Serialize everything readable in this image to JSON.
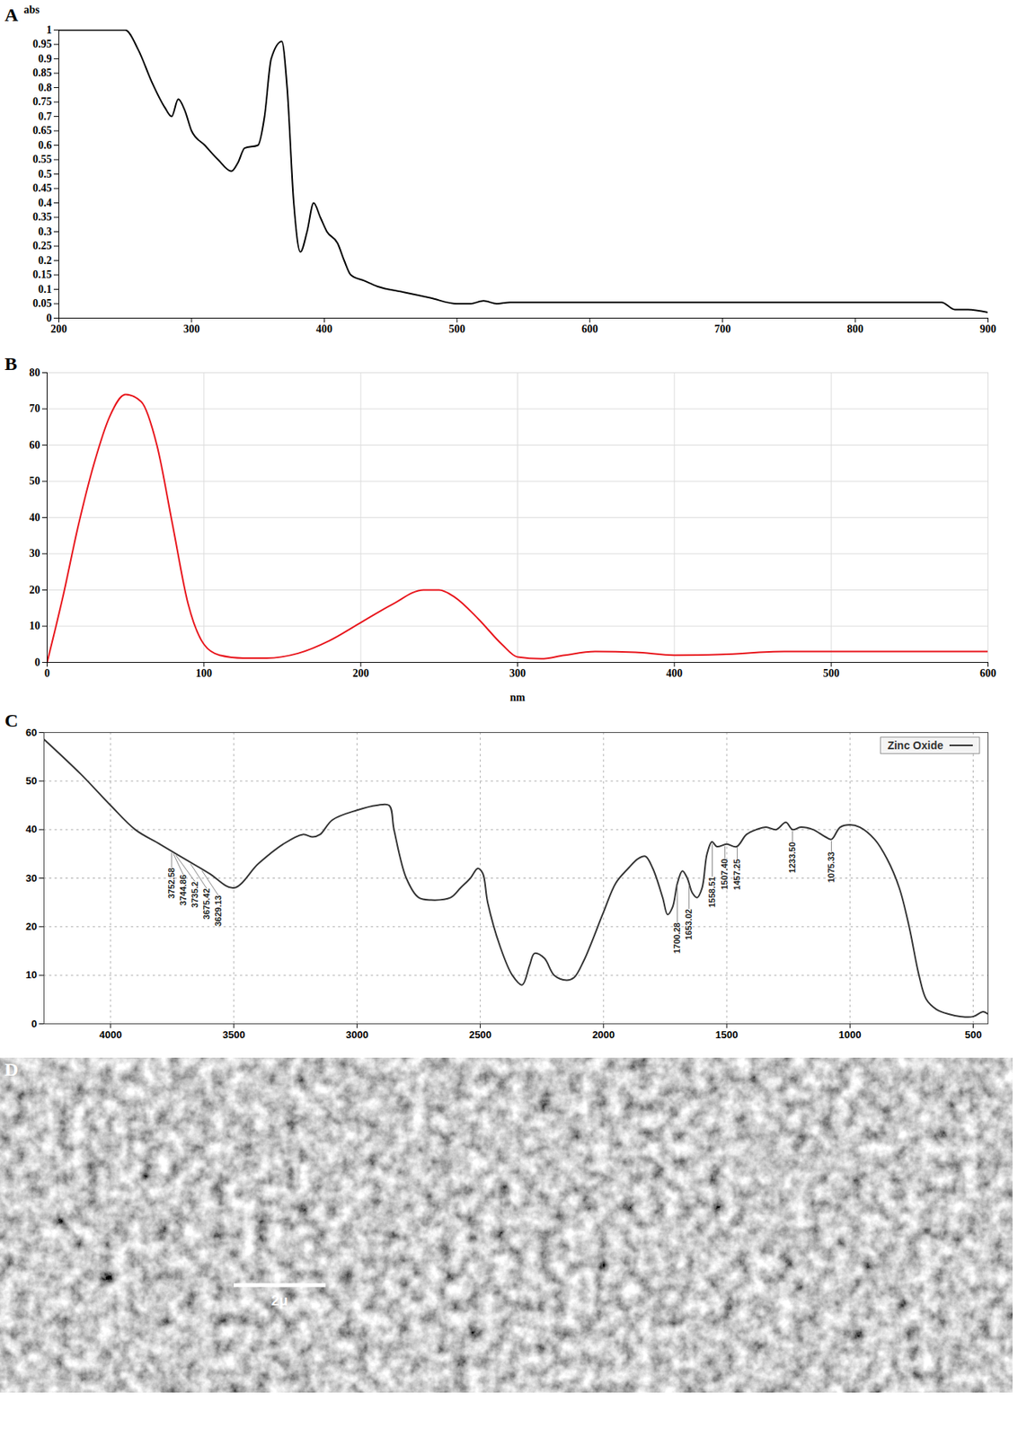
{
  "chart_data": [
    {
      "panel": "A",
      "type": "line",
      "y_label": "abs",
      "color": "#000000",
      "grid": false,
      "x": [
        200,
        250,
        260,
        270,
        280,
        285,
        290,
        295,
        300,
        310,
        320,
        330,
        335,
        340,
        350,
        355,
        360,
        368,
        372,
        377,
        382,
        387,
        392,
        397,
        402,
        410,
        415,
        420,
        430,
        440,
        460,
        480,
        500,
        510,
        520,
        530,
        540,
        600,
        700,
        800,
        865,
        875,
        885,
        900
      ],
      "values": [
        1,
        1,
        0.93,
        0.82,
        0.73,
        0.7,
        0.76,
        0.72,
        0.65,
        0.6,
        0.55,
        0.51,
        0.54,
        0.59,
        0.6,
        0.7,
        0.9,
        0.96,
        0.8,
        0.4,
        0.23,
        0.3,
        0.4,
        0.35,
        0.3,
        0.26,
        0.2,
        0.15,
        0.13,
        0.11,
        0.09,
        0.07,
        0.05,
        0.05,
        0.06,
        0.05,
        0.055,
        0.055,
        0.055,
        0.055,
        0.055,
        0.03,
        0.03,
        0.02
      ],
      "xlim": [
        200,
        900
      ],
      "xticks": [
        200,
        300,
        400,
        500,
        600,
        700,
        800,
        900
      ],
      "ylim": [
        0,
        1
      ],
      "yticks": [
        0,
        0.05,
        0.1,
        0.15,
        0.2,
        0.25,
        0.3,
        0.35,
        0.4,
        0.45,
        0.5,
        0.55,
        0.6,
        0.65,
        0.7,
        0.75,
        0.8,
        0.85,
        0.9,
        0.95,
        1
      ]
    },
    {
      "panel": "B",
      "type": "line",
      "x_label": "nm",
      "color": "#e8141b",
      "grid": true,
      "x": [
        0,
        10,
        20,
        30,
        40,
        50,
        60,
        70,
        80,
        90,
        100,
        110,
        125,
        140,
        160,
        180,
        200,
        220,
        240,
        250,
        260,
        275,
        290,
        300,
        315,
        330,
        350,
        375,
        400,
        430,
        470,
        500,
        550,
        600
      ],
      "values": [
        0,
        18,
        38,
        55,
        68,
        74,
        72,
        60,
        38,
        16,
        5,
        2,
        1.2,
        1.2,
        2.5,
        6,
        11,
        16,
        20,
        20,
        18,
        12,
        5,
        1.5,
        1,
        2,
        3,
        2.8,
        2,
        2.2,
        3,
        3,
        3,
        3
      ],
      "xlim": [
        0,
        600
      ],
      "xticks": [
        0,
        100,
        200,
        300,
        400,
        500,
        600
      ],
      "ylim": [
        0,
        80
      ],
      "yticks": [
        0,
        10,
        20,
        30,
        40,
        50,
        60,
        70,
        80
      ]
    },
    {
      "panel": "C",
      "type": "line",
      "grid": true,
      "legend": "top-right",
      "x": [
        4270,
        4120,
        4000,
        3900,
        3800,
        3700,
        3600,
        3500,
        3400,
        3300,
        3220,
        3180,
        3150,
        3100,
        3000,
        2920,
        2870,
        2850,
        2800,
        2750,
        2700,
        2620,
        2580,
        2540,
        2510,
        2490,
        2470,
        2420,
        2370,
        2330,
        2300,
        2280,
        2240,
        2200,
        2150,
        2120,
        2080,
        2000,
        1950,
        1900,
        1860,
        1830,
        1800,
        1760,
        1740,
        1720,
        1700,
        1680,
        1660,
        1640,
        1620,
        1600,
        1580,
        1560,
        1540,
        1500,
        1460,
        1420,
        1380,
        1340,
        1300,
        1260,
        1233,
        1200,
        1150,
        1100,
        1075,
        1040,
        1000,
        960,
        900,
        850,
        800,
        760,
        720,
        690,
        650,
        600,
        550,
        500,
        460,
        440
      ],
      "series": [
        {
          "name": "Zinc Oxide",
          "color": "#333333",
          "values": [
            58.6,
            51.4,
            45,
            40,
            37,
            34,
            31,
            28,
            33,
            37,
            39,
            38.5,
            39,
            42,
            44,
            45,
            45,
            40,
            30,
            26,
            25.5,
            26,
            28,
            30,
            32,
            31,
            25,
            16,
            10,
            8,
            12,
            14.5,
            13.5,
            10,
            9,
            9.5,
            13,
            23,
            29,
            32,
            34,
            34.5,
            32,
            26,
            22.5,
            24,
            29,
            31.5,
            30,
            27,
            26,
            28,
            35,
            37.5,
            36.5,
            37,
            36.5,
            39,
            40,
            40.5,
            40,
            41.5,
            40,
            40.5,
            40,
            38.5,
            38,
            40.5,
            41,
            40.5,
            38,
            34,
            28,
            20,
            10,
            5,
            3,
            2,
            1.5,
            1.5,
            2.5,
            2
          ]
        }
      ],
      "annotations": [
        {
          "x": 3752.58,
          "label": "3752.58"
        },
        {
          "x": 3744.86,
          "label": "3744.86"
        },
        {
          "x": 3735.2,
          "label": "3735.2"
        },
        {
          "x": 3675.42,
          "label": "3675.42"
        },
        {
          "x": 3629.13,
          "label": "3629.13"
        },
        {
          "x": 1700.28,
          "label": "1700.28"
        },
        {
          "x": 1653.02,
          "label": "1653.02"
        },
        {
          "x": 1558.51,
          "label": "1558.51"
        },
        {
          "x": 1507.4,
          "label": "1507.40"
        },
        {
          "x": 1457.25,
          "label": "1457.25"
        },
        {
          "x": 1233.5,
          "label": "1233.50"
        },
        {
          "x": 1075.33,
          "label": "1075.33"
        }
      ],
      "xlim": [
        4270,
        440
      ],
      "xticks": [
        4000,
        3500,
        3000,
        2500,
        2000,
        1500,
        1000,
        500
      ],
      "ylim": [
        0,
        60
      ],
      "yticks": [
        0,
        10,
        20,
        30,
        40,
        50,
        60
      ]
    },
    {
      "panel": "D",
      "type": "image",
      "scale_bar": "2μ"
    }
  ]
}
